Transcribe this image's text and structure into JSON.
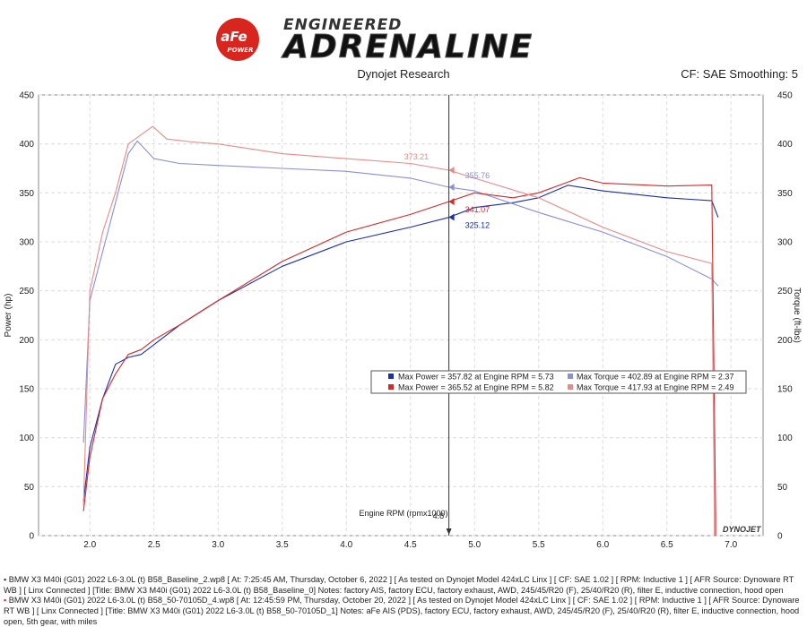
{
  "header": {
    "logo_badge": "aFe",
    "logo_badge_sub": "POWER",
    "logo_top": "ENGINEERED",
    "logo_main": "ADRENALINE",
    "title": "Dynojet Research",
    "right_info": "CF: SAE Smoothing: 5"
  },
  "colors": {
    "run1_power": "#1c2fa8",
    "run1_torque": "#8a8fd6",
    "run2_power": "#d22a2a",
    "run2_torque": "#e88a8a",
    "cursor": "#333333"
  },
  "chart_data": {
    "type": "line",
    "xlabel": "Engine RPM (rpmx1000)",
    "ylabel": "Power (hp)",
    "y2label": "Torque (ft-lbs)",
    "xlim": [
      1.6,
      7.25
    ],
    "ylim": [
      0,
      450
    ],
    "y2lim": [
      0,
      450
    ],
    "x_ticks": [
      "2.0",
      "2.5",
      "3.0",
      "3.5",
      "4.0",
      "4.5",
      "5.0",
      "5.5",
      "6.0",
      "6.5",
      "7.0"
    ],
    "y_ticks": [
      "0",
      "50",
      "100",
      "150",
      "200",
      "250",
      "300",
      "350",
      "400",
      "450"
    ],
    "grid": true,
    "cursor_x": 4.8,
    "cursor_label": "4.8",
    "series": [
      {
        "key": "run1_power",
        "axis": "left",
        "x": [
          1.95,
          2.0,
          2.1,
          2.2,
          2.3,
          2.4,
          2.5,
          2.7,
          3.0,
          3.5,
          4.0,
          4.5,
          4.8,
          5.0,
          5.3,
          5.5,
          5.73,
          6.0,
          6.5,
          6.85,
          6.9
        ],
        "y": [
          35,
          90,
          140,
          175,
          182,
          185,
          195,
          215,
          240,
          275,
          300,
          315,
          325,
          335,
          340,
          345,
          357.82,
          352,
          345,
          342,
          325
        ]
      },
      {
        "key": "run1_torque",
        "axis": "right",
        "x": [
          1.95,
          2.0,
          2.1,
          2.2,
          2.3,
          2.37,
          2.5,
          2.7,
          3.0,
          3.5,
          4.0,
          4.5,
          4.8,
          5.0,
          5.5,
          6.0,
          6.5,
          6.85,
          6.9
        ],
        "y": [
          95,
          240,
          290,
          340,
          390,
          402.89,
          385,
          380,
          378,
          375,
          372,
          365,
          355.76,
          352,
          330,
          310,
          285,
          262,
          255
        ]
      },
      {
        "key": "run2_power",
        "axis": "left",
        "x": [
          1.95,
          2.0,
          2.1,
          2.2,
          2.3,
          2.4,
          2.5,
          2.7,
          3.0,
          3.5,
          4.0,
          4.5,
          4.8,
          5.0,
          5.3,
          5.5,
          5.82,
          6.0,
          6.5,
          6.85,
          6.88,
          6.88
        ],
        "y": [
          25,
          80,
          140,
          165,
          185,
          190,
          200,
          215,
          240,
          280,
          310,
          328,
          341.07,
          350,
          345,
          350,
          365.52,
          360,
          357,
          358,
          20,
          0
        ]
      },
      {
        "key": "run2_torque",
        "axis": "right",
        "x": [
          1.95,
          2.0,
          2.1,
          2.2,
          2.3,
          2.49,
          2.6,
          2.8,
          3.0,
          3.5,
          4.0,
          4.5,
          4.8,
          5.0,
          5.5,
          6.0,
          6.5,
          6.85,
          6.87,
          6.87
        ],
        "y": [
          30,
          250,
          310,
          350,
          400,
          417.93,
          405,
          402,
          400,
          390,
          385,
          380,
          373.21,
          365,
          345,
          315,
          290,
          278,
          30,
          0
        ]
      }
    ],
    "cursor_values": [
      {
        "key": "run2_torque",
        "label": "373.21",
        "x": 4.8,
        "y": 373.21
      },
      {
        "key": "run1_torque",
        "label": "355.76",
        "x": 4.8,
        "y": 355.76
      },
      {
        "key": "run2_power",
        "label": "341.07",
        "x": 4.8,
        "y": 341.07
      },
      {
        "key": "run1_power",
        "label": "325.12",
        "x": 4.8,
        "y": 325.12
      }
    ],
    "legend": [
      {
        "power_key": "run1_power",
        "power_text": "Max Power = 357.82 at Engine RPM = 5.73",
        "torque_key": "run1_torque",
        "torque_text": "Max Torque = 402.89 at Engine RPM = 2.37"
      },
      {
        "power_key": "run2_power",
        "power_text": "Max Power = 365.52 at Engine RPM = 5.82",
        "torque_key": "run2_torque",
        "torque_text": "Max Torque = 417.93 at Engine RPM = 2.49"
      }
    ],
    "brand_mark": "DYNOJET"
  },
  "notes": [
    {
      "text": "BMW X3 M40i (G01) 2022 L6-3.0L (t) B58_Baseline_2.wp8 [ At: 7:25:45 AM, Thursday, October 6, 2022 ] [ As tested on Dynojet Model 424xLC Linx ] [ CF: SAE 1.02 ] [ RPM: Inductive 1 ] [ AFR Source: Dynoware RT WB ] [ Linx Connected ] [Title: BMW X3 M40i (G01) 2022 L6-3.0L (t) B58_Baseline_0]  Notes: factory AIS, factory ECU, factory exhaust, AWD, 245/45/R20 (F), 25/40/R20 (R), filter E, inductive connection, hood open"
    },
    {
      "text": "BMW X3 M40i (G01) 2022 L6-3.0L (t) B58_50-70105D_4.wp8 [ At: 12:45:59 PM, Thursday, October 20, 2022 ] [ As tested on Dynojet Model 424xLC Linx ] [ CF: SAE 1.02 ] [ RPM: Inductive 1 ] [ AFR Source: Dynoware RT WB ] [ Linx Connected ] [Title: BMW X3 M40i (G01) 2022 L6-3.0L (t) B58_50-70105D_1]  Notes: aFe AIS (PDS), factory ECU, factory exhaust, AWD, 245/45/R20 (F), 25/40/R20 (R), filter E, inductive connection, hood open, 5th gear, with miles"
    }
  ]
}
